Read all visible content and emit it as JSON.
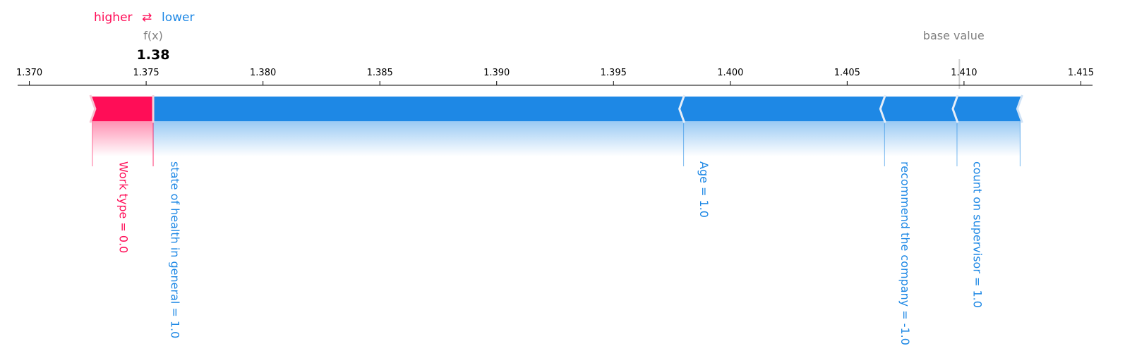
{
  "legend": {
    "higher_label": "higher",
    "arrow_glyph": "⇄",
    "lower_label": "lower"
  },
  "chart_data": {
    "type": "force",
    "output_label": "f(x)",
    "output_value": 1.3753,
    "output_value_label": "1.38",
    "base_value_label": "base value",
    "base_value": 1.4098,
    "xlim": [
      1.3695,
      1.4155
    ],
    "ticks": [
      "1.370",
      "1.375",
      "1.380",
      "1.385",
      "1.390",
      "1.395",
      "1.400",
      "1.405",
      "1.410",
      "1.415"
    ],
    "tick_values": [
      1.37,
      1.375,
      1.38,
      1.385,
      1.39,
      1.395,
      1.4,
      1.405,
      1.41,
      1.415
    ],
    "positive_features": [
      {
        "label": "Work type = 0.0",
        "start": 1.3727,
        "end": 1.3753
      }
    ],
    "negative_features": [
      {
        "label": "state of health in general = 1.0",
        "start": 1.3753,
        "end": 1.398
      },
      {
        "label": "Age = 1.0",
        "start": 1.398,
        "end": 1.4066
      },
      {
        "label": "recommend the company = -1.0",
        "start": 1.4066,
        "end": 1.4097
      },
      {
        "label": "count on supervisor = 1.0",
        "start": 1.4097,
        "end": 1.4124
      }
    ],
    "colors": {
      "positive": "#ff0d57",
      "negative": "#1e88e5",
      "muted": "#808080",
      "text": "#000000"
    }
  }
}
